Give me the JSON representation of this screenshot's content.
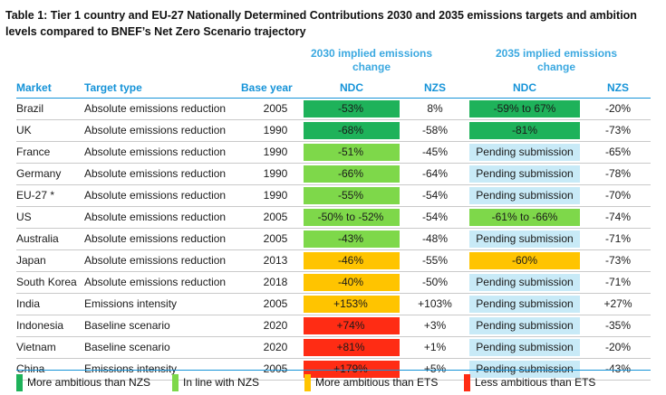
{
  "title": "Table 1: Tier 1 country and EU-27 Nationally Determined Contributions 2030 and 2035 emissions targets and ambition levels compared to BNEF’s Net Zero Scenario trajectory",
  "groups": {
    "g2030": "2030 implied emissions change",
    "g2035": "2035 implied emissions change"
  },
  "headers": {
    "market": "Market",
    "target_type": "Target type",
    "base_year": "Base year",
    "ndc_2030": "NDC",
    "nzs_2030": "NZS",
    "ndc_2035": "NDC",
    "nzs_2035": "NZS"
  },
  "colors": {
    "more_ambitious_than_nzs": "#1eb25a",
    "in_line_with_nzs": "#7ed84a",
    "more_ambitious_than_ets": "#ffc400",
    "less_ambitious_than_ets": "#ff2c14",
    "pending": "#c8eaf7"
  },
  "rows": [
    {
      "market": "Brazil",
      "target_type": "Absolute emissions reduction",
      "base_year": "2005",
      "ndc_2030": "-53%",
      "ndc_2030_status": "more_ambitious_than_nzs",
      "nzs_2030": "8%",
      "ndc_2035": "-59% to 67%",
      "ndc_2035_status": "more_ambitious_than_nzs",
      "nzs_2035": "-20%"
    },
    {
      "market": "UK",
      "target_type": "Absolute emissions reduction",
      "base_year": "1990",
      "ndc_2030": "-68%",
      "ndc_2030_status": "more_ambitious_than_nzs",
      "nzs_2030": "-58%",
      "ndc_2035": "-81%",
      "ndc_2035_status": "more_ambitious_than_nzs",
      "nzs_2035": "-73%"
    },
    {
      "market": "France",
      "target_type": "Absolute emissions reduction",
      "base_year": "1990",
      "ndc_2030": "-51%",
      "ndc_2030_status": "in_line_with_nzs",
      "nzs_2030": "-45%",
      "ndc_2035": "Pending submission",
      "ndc_2035_status": "pending",
      "nzs_2035": "-65%"
    },
    {
      "market": "Germany",
      "target_type": "Absolute emissions reduction",
      "base_year": "1990",
      "ndc_2030": "-66%",
      "ndc_2030_status": "in_line_with_nzs",
      "nzs_2030": "-64%",
      "ndc_2035": "Pending submission",
      "ndc_2035_status": "pending",
      "nzs_2035": "-78%"
    },
    {
      "market": "EU-27 *",
      "target_type": "Absolute emissions reduction",
      "base_year": "1990",
      "ndc_2030": "-55%",
      "ndc_2030_status": "in_line_with_nzs",
      "nzs_2030": "-54%",
      "ndc_2035": "Pending submission",
      "ndc_2035_status": "pending",
      "nzs_2035": "-70%"
    },
    {
      "market": "US",
      "target_type": "Absolute emissions reduction",
      "base_year": "2005",
      "ndc_2030": "-50% to -52%",
      "ndc_2030_status": "in_line_with_nzs",
      "nzs_2030": "-54%",
      "ndc_2035": "-61% to -66%",
      "ndc_2035_status": "in_line_with_nzs",
      "nzs_2035": "-74%"
    },
    {
      "market": "Australia",
      "target_type": "Absolute emissions reduction",
      "base_year": "2005",
      "ndc_2030": "-43%",
      "ndc_2030_status": "in_line_with_nzs",
      "nzs_2030": "-48%",
      "ndc_2035": "Pending submission",
      "ndc_2035_status": "pending",
      "nzs_2035": "-71%"
    },
    {
      "market": "Japan",
      "target_type": "Absolute emissions reduction",
      "base_year": "2013",
      "ndc_2030": "-46%",
      "ndc_2030_status": "more_ambitious_than_ets",
      "nzs_2030": "-55%",
      "ndc_2035": "-60%",
      "ndc_2035_status": "more_ambitious_than_ets",
      "nzs_2035": "-73%"
    },
    {
      "market": "South Korea",
      "target_type": "Absolute emissions reduction",
      "base_year": "2018",
      "ndc_2030": "-40%",
      "ndc_2030_status": "more_ambitious_than_ets",
      "nzs_2030": "-50%",
      "ndc_2035": "Pending submission",
      "ndc_2035_status": "pending",
      "nzs_2035": "-71%"
    },
    {
      "market": "India",
      "target_type": "Emissions intensity",
      "base_year": "2005",
      "ndc_2030": "+153%",
      "ndc_2030_status": "more_ambitious_than_ets",
      "nzs_2030": "+103%",
      "ndc_2035": "Pending submission",
      "ndc_2035_status": "pending",
      "nzs_2035": "+27%"
    },
    {
      "market": "Indonesia",
      "target_type": "Baseline scenario",
      "base_year": "2020",
      "ndc_2030": "+74%",
      "ndc_2030_status": "less_ambitious_than_ets",
      "nzs_2030": "+3%",
      "ndc_2035": "Pending submission",
      "ndc_2035_status": "pending",
      "nzs_2035": "-35%"
    },
    {
      "market": "Vietnam",
      "target_type": "Baseline scenario",
      "base_year": "2020",
      "ndc_2030": "+81%",
      "ndc_2030_status": "less_ambitious_than_ets",
      "nzs_2030": "+1%",
      "ndc_2035": "Pending submission",
      "ndc_2035_status": "pending",
      "nzs_2035": "-20%"
    },
    {
      "market": "China",
      "target_type": "Emissions intensity",
      "base_year": "2005",
      "ndc_2030": "+179%",
      "ndc_2030_status": "less_ambitious_than_ets",
      "nzs_2030": "+5%",
      "ndc_2035": "Pending submission",
      "ndc_2035_status": "pending",
      "nzs_2035": "-43%"
    }
  ],
  "legend": [
    {
      "label": "More ambitious than NZS",
      "status": "more_ambitious_than_nzs"
    },
    {
      "label": "In line with NZS",
      "status": "in_line_with_nzs"
    },
    {
      "label": "More ambitious than ETS",
      "status": "more_ambitious_than_ets"
    },
    {
      "label": "Less ambitious than ETS",
      "status": "less_ambitious_than_ets"
    }
  ]
}
